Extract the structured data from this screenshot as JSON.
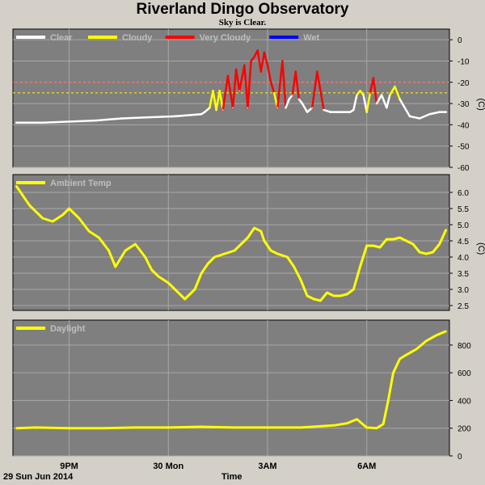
{
  "title": "Riverland Dingo Observatory",
  "subtitle": "Sky is Clear.",
  "date_label": "29 Sun Jun 2014",
  "x_axis_title": "Time",
  "colors": {
    "panel_bg": "#7f7f7f",
    "grid": "#a8a8a8",
    "clear": "#ffffff",
    "cloudy": "#ffff00",
    "very_cloudy": "#ff0000",
    "wet": "#0000ff",
    "threshold_red": "#ff4040",
    "threshold_yellow": "#ffff00",
    "legend_text": "#bfbfbf"
  },
  "chart_data": [
    {
      "type": "line",
      "name": "sky",
      "legend": [
        {
          "label": "Clear",
          "color": "#ffffff"
        },
        {
          "label": "Cloudy",
          "color": "#ffff00"
        },
        {
          "label": "Very Cloudy",
          "color": "#ff0000"
        },
        {
          "label": "Wet",
          "color": "#0000ff"
        }
      ],
      "ylabel": "(C)",
      "ylim": [
        -60,
        5
      ],
      "yticks": [
        0,
        -10,
        -20,
        -30,
        -40,
        -50,
        -60
      ],
      "thresholds": [
        {
          "value": -20,
          "color": "#ff4040"
        },
        {
          "value": -25,
          "color": "#ffff00"
        }
      ],
      "xlim": [
        19.3,
        32.5
      ],
      "xticks": [
        {
          "x": 21,
          "label": "9PM"
        },
        {
          "x": 24,
          "label": "30 Mon"
        },
        {
          "x": 27,
          "label": "3AM"
        },
        {
          "x": 30,
          "label": "6AM"
        }
      ],
      "x": [
        19.4,
        20.2,
        21.0,
        21.8,
        22.6,
        23.4,
        24.2,
        25.0,
        25.1,
        25.25,
        25.35,
        25.45,
        25.55,
        25.65,
        25.8,
        25.95,
        26.05,
        26.15,
        26.3,
        26.4,
        26.5,
        26.6,
        26.7,
        26.8,
        26.9,
        27.0,
        27.1,
        27.2,
        27.3,
        27.45,
        27.55,
        27.65,
        27.75,
        27.85,
        27.95,
        28.05,
        28.2,
        28.35,
        28.5,
        28.7,
        28.9,
        29.1,
        29.3,
        29.5,
        29.6,
        29.7,
        29.8,
        29.9,
        30.0,
        30.1,
        30.2,
        30.3,
        30.45,
        30.6,
        30.7,
        30.85,
        31.0,
        31.3,
        31.6,
        31.9,
        32.2,
        32.4
      ],
      "y": [
        -39,
        -39,
        -38.5,
        -38,
        -37,
        -36.5,
        -36,
        -35,
        -34,
        -32,
        -24,
        -33,
        -24,
        -33,
        -17,
        -32,
        -14,
        -24,
        -12,
        -32,
        -10,
        -8,
        -5,
        -15,
        -6,
        -12,
        -20,
        -25,
        -32,
        -10,
        -32,
        -28,
        -26,
        -15,
        -28,
        -30,
        -34,
        -32,
        -15,
        -33,
        -34,
        -34,
        -34,
        -34,
        -33,
        -26,
        -24,
        -26,
        -34,
        -25,
        -18,
        -30,
        -26,
        -32,
        -26,
        -22,
        -28,
        -36,
        -37,
        -35,
        -34,
        -34
      ]
    },
    {
      "type": "line",
      "name": "ambient",
      "legend": [
        {
          "label": "Ambient Temp",
          "color": "#ffff00"
        }
      ],
      "ylabel": "(C)",
      "ylim": [
        2.35,
        6.55
      ],
      "yticks": [
        6.0,
        5.5,
        5.0,
        4.5,
        4.0,
        3.5,
        3.0,
        2.5
      ],
      "xlim": [
        19.3,
        32.5
      ],
      "x": [
        19.4,
        19.8,
        20.2,
        20.5,
        20.8,
        21.0,
        21.3,
        21.6,
        21.9,
        22.2,
        22.4,
        22.7,
        23.0,
        23.3,
        23.5,
        23.7,
        24.0,
        24.2,
        24.5,
        24.8,
        25.0,
        25.2,
        25.4,
        25.7,
        26.0,
        26.2,
        26.4,
        26.6,
        26.8,
        26.9,
        27.1,
        27.3,
        27.6,
        27.8,
        28.0,
        28.2,
        28.4,
        28.6,
        28.8,
        29.0,
        29.2,
        29.4,
        29.6,
        29.8,
        30.0,
        30.2,
        30.4,
        30.6,
        30.8,
        31.0,
        31.2,
        31.4,
        31.6,
        31.8,
        32.0,
        32.2,
        32.4
      ],
      "y": [
        6.2,
        5.6,
        5.2,
        5.1,
        5.3,
        5.5,
        5.2,
        4.8,
        4.6,
        4.2,
        3.7,
        4.2,
        4.4,
        4.0,
        3.6,
        3.4,
        3.2,
        3.0,
        2.7,
        3.0,
        3.5,
        3.8,
        4.0,
        4.1,
        4.2,
        4.4,
        4.6,
        4.9,
        4.8,
        4.5,
        4.2,
        4.1,
        4.0,
        3.7,
        3.3,
        2.8,
        2.7,
        2.65,
        2.9,
        2.8,
        2.8,
        2.85,
        3.0,
        3.7,
        4.35,
        4.35,
        4.3,
        4.55,
        4.55,
        4.6,
        4.5,
        4.4,
        4.15,
        4.1,
        4.15,
        4.4,
        4.85
      ]
    },
    {
      "type": "line",
      "name": "daylight",
      "legend": [
        {
          "label": "Daylight",
          "color": "#ffff00"
        }
      ],
      "ylabel": "",
      "ylim": [
        0,
        980
      ],
      "yticks": [
        800,
        600,
        400,
        200,
        0
      ],
      "xlim": [
        19.3,
        32.5
      ],
      "x": [
        19.4,
        20.0,
        21.0,
        22.0,
        23.0,
        24.0,
        25.0,
        26.0,
        27.0,
        28.0,
        29.0,
        29.4,
        29.7,
        30.0,
        30.3,
        30.5,
        30.65,
        30.8,
        31.0,
        31.2,
        31.5,
        31.8,
        32.1,
        32.4
      ],
      "y": [
        200,
        205,
        200,
        200,
        205,
        205,
        210,
        205,
        205,
        205,
        220,
        235,
        265,
        205,
        200,
        230,
        400,
        600,
        700,
        730,
        770,
        830,
        870,
        900
      ]
    }
  ]
}
